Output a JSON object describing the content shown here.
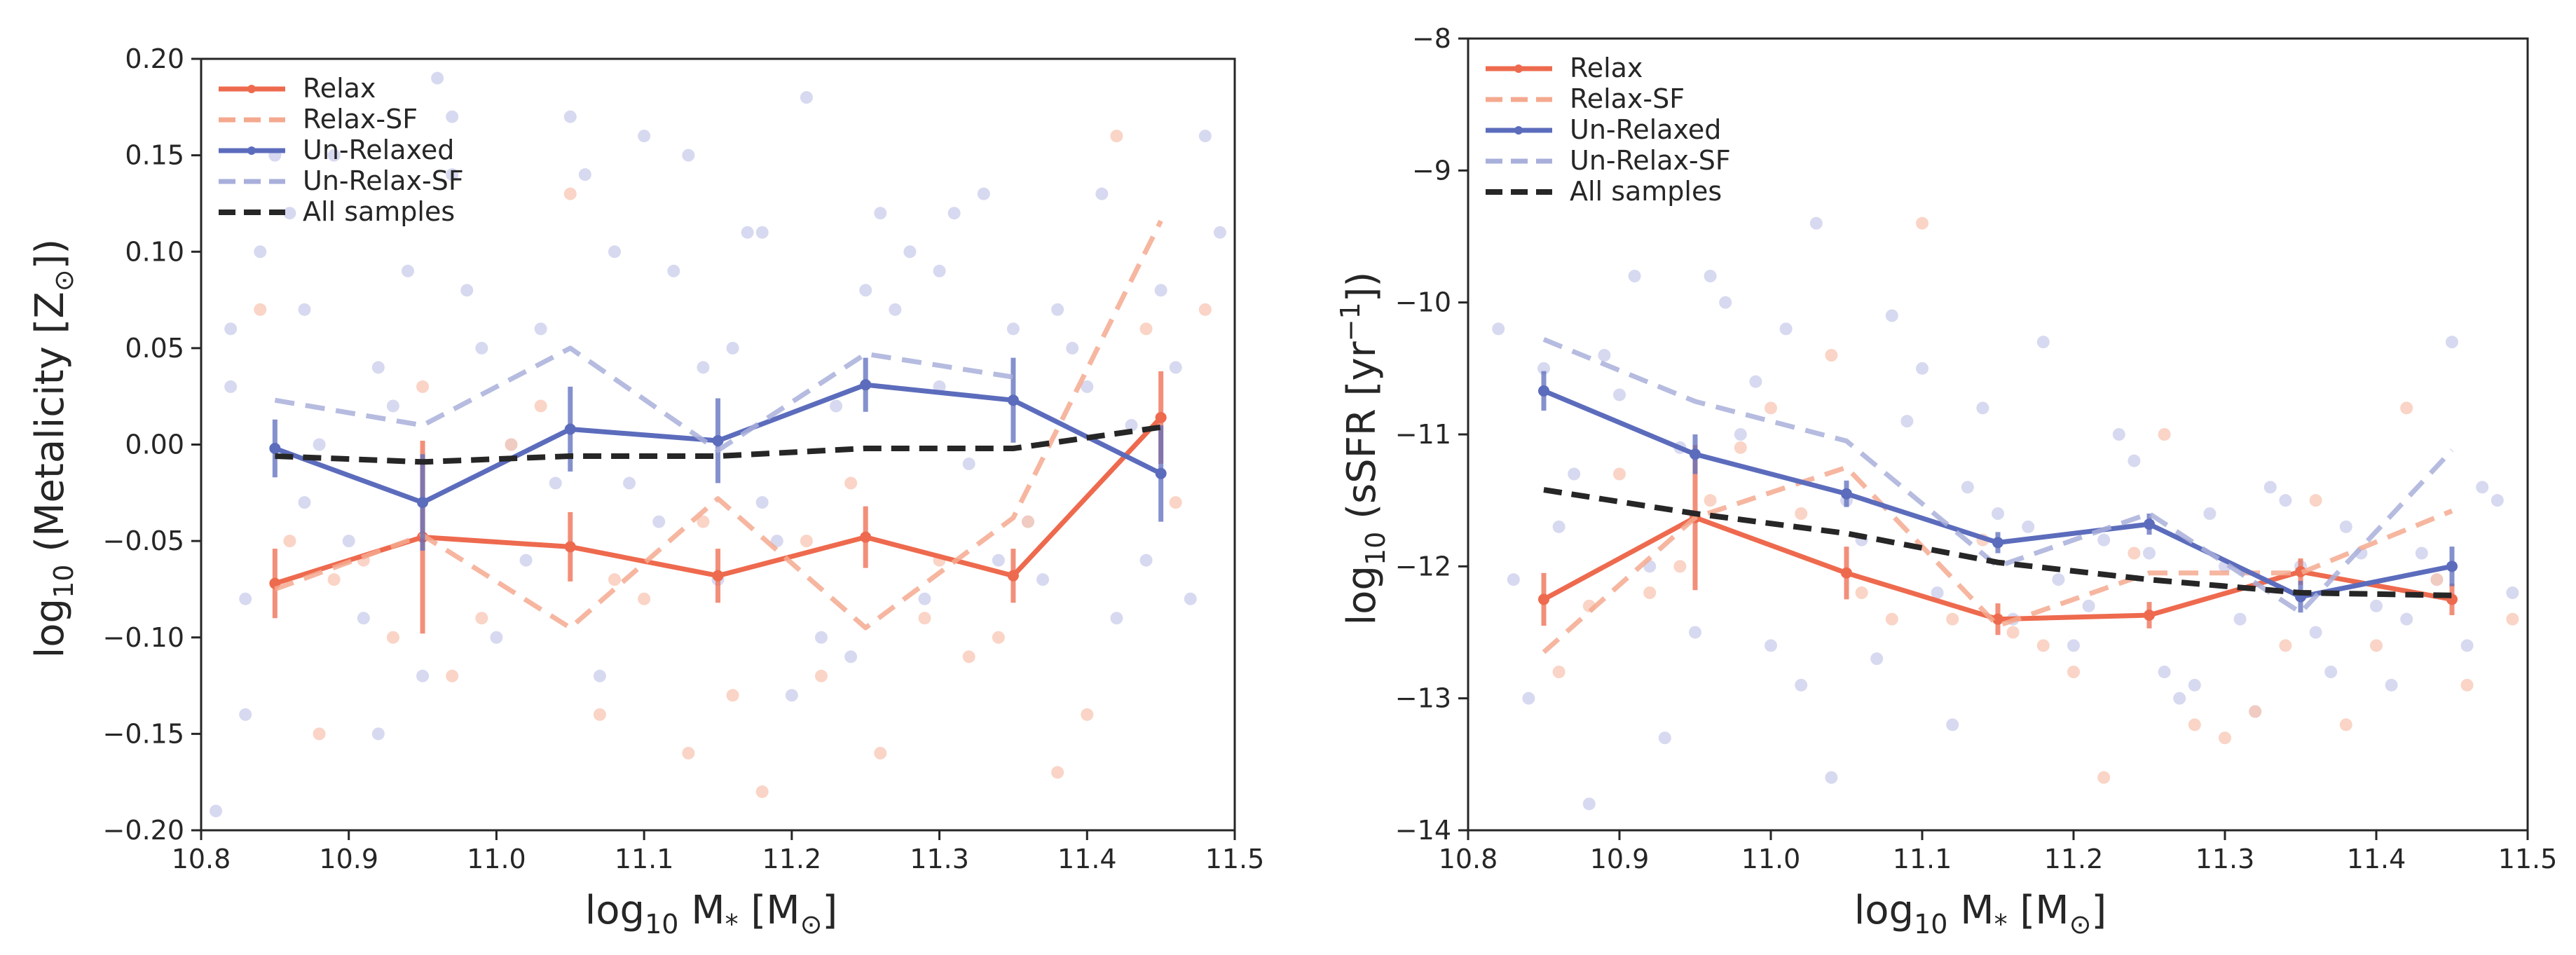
{
  "chart_data": [
    {
      "type": "line",
      "panel": "left",
      "title": "",
      "xlabel": "log10 M* [M⊙]",
      "ylabel": "log10 (Metalicity [Z⊙])",
      "xlim": [
        10.8,
        11.5
      ],
      "ylim": [
        -0.2,
        0.2
      ],
      "xticks": [
        10.8,
        10.9,
        11.0,
        11.1,
        11.2,
        11.3,
        11.4,
        11.5
      ],
      "xtick_labels": [
        "10.8",
        "10.9",
        "11.0",
        "11.1",
        "11.2",
        "11.3",
        "11.4",
        "11.5"
      ],
      "yticks": [
        -0.2,
        -0.15,
        -0.1,
        -0.05,
        0.0,
        0.05,
        0.1,
        0.15,
        0.2
      ],
      "ytick_labels": [
        "−0.20",
        "−0.15",
        "−0.10",
        "−0.05",
        "0.00",
        "0.05",
        "0.10",
        "0.15",
        "0.20"
      ],
      "legend_position": "top-left",
      "series": [
        {
          "name": "Relax",
          "style": "solid-errorbar",
          "color": "#ee6a4e",
          "x": [
            10.85,
            10.95,
            11.05,
            11.15,
            11.25,
            11.35,
            11.45
          ],
          "y": [
            -0.072,
            -0.048,
            -0.053,
            -0.068,
            -0.048,
            -0.068,
            0.014
          ],
          "err": [
            0.018,
            0.05,
            0.018,
            0.014,
            0.016,
            0.014,
            0.024
          ]
        },
        {
          "name": "Relax-SF",
          "style": "dashed",
          "color": "#f4a98f",
          "x": [
            10.85,
            10.95,
            11.05,
            11.15,
            11.25,
            11.35,
            11.45
          ],
          "y": [
            -0.075,
            -0.047,
            -0.095,
            -0.028,
            -0.095,
            -0.038,
            0.116
          ]
        },
        {
          "name": "Un-Relaxed",
          "style": "solid-errorbar",
          "color": "#5c6cbc",
          "x": [
            10.85,
            10.95,
            11.05,
            11.15,
            11.25,
            11.35,
            11.45
          ],
          "y": [
            -0.002,
            -0.03,
            0.008,
            0.002,
            0.031,
            0.023,
            -0.015
          ],
          "err": [
            0.015,
            0.025,
            0.022,
            0.022,
            0.014,
            0.022,
            0.025
          ]
        },
        {
          "name": "Un-Relax-SF",
          "style": "dashed",
          "color": "#a9afdb",
          "x": [
            10.85,
            10.95,
            11.05,
            11.15,
            11.25,
            11.35
          ],
          "y": [
            0.023,
            0.01,
            0.05,
            -0.003,
            0.047,
            0.035
          ]
        },
        {
          "name": "All samples",
          "style": "dashed-bold",
          "color": "#262626",
          "x": [
            10.85,
            10.95,
            11.05,
            11.15,
            11.25,
            11.35,
            11.45
          ],
          "y": [
            -0.006,
            -0.009,
            -0.006,
            -0.006,
            -0.002,
            -0.002,
            0.009
          ]
        }
      ],
      "scatter": [
        {
          "name": "Un-Relaxed points",
          "color": "#c9cceb",
          "x": [
            10.82,
            10.84,
            10.87,
            10.89,
            10.92,
            10.95,
            10.98,
            10.83,
            10.86,
            10.9,
            10.93,
            10.97,
            11.0,
            11.03,
            11.06,
            11.09,
            11.12,
            11.15,
            11.18,
            11.21,
            11.24,
            11.27,
            11.3,
            11.33,
            11.36,
            11.39,
            11.42,
            11.45,
            11.48,
            10.81,
            10.88,
            10.96,
            11.02,
            11.08,
            11.14,
            11.2,
            11.26,
            11.32,
            11.38,
            11.44,
            11.47,
            10.85,
            10.91,
            10.99,
            11.05,
            11.11,
            11.17,
            11.23,
            11.29,
            11.35,
            11.41,
            10.83,
            10.94,
            11.01,
            11.13,
            11.19,
            11.25,
            11.31,
            11.4,
            11.46,
            10.87,
            10.92,
            11.04,
            11.1,
            11.16,
            11.22,
            11.28,
            11.34,
            11.43,
            11.49,
            10.82,
            10.97,
            11.07,
            11.18,
            11.3,
            11.37
          ],
          "y": [
            0.06,
            0.1,
            -0.03,
            0.15,
            0.04,
            -0.12,
            0.08,
            -0.08,
            0.12,
            -0.05,
            0.02,
            0.17,
            -0.1,
            0.06,
            0.14,
            -0.02,
            0.09,
            -0.07,
            0.11,
            0.18,
            -0.11,
            0.07,
            0.03,
            0.13,
            -0.04,
            0.05,
            -0.09,
            0.08,
            0.16,
            -0.19,
            0.0,
            0.19,
            -0.06,
            0.1,
            0.04,
            -0.13,
            0.12,
            -0.01,
            0.07,
            -0.06,
            -0.08,
            0.15,
            -0.09,
            0.05,
            0.17,
            -0.04,
            0.11,
            0.02,
            -0.08,
            0.06,
            0.13,
            -0.14,
            0.09,
            0.0,
            0.15,
            -0.05,
            0.08,
            0.12,
            0.03,
            0.04,
            0.07,
            -0.15,
            -0.02,
            0.16,
            0.05,
            -0.1,
            0.1,
            -0.06,
            0.01,
            0.11,
            0.03,
            0.14,
            -0.12,
            -0.03,
            0.09,
            -0.07
          ]
        },
        {
          "name": "Relax points",
          "color": "#f8c6b3",
          "x": [
            10.84,
            10.88,
            10.91,
            10.95,
            10.99,
            11.03,
            11.07,
            11.1,
            11.14,
            11.18,
            11.22,
            11.26,
            11.3,
            11.34,
            11.38,
            11.42,
            11.46,
            11.48,
            10.86,
            10.93,
            11.01,
            11.08,
            11.16,
            11.24,
            11.32,
            11.4,
            11.44,
            10.89,
            10.97,
            11.05,
            11.13,
            11.21,
            11.29,
            11.36
          ],
          "y": [
            0.07,
            -0.15,
            -0.06,
            0.03,
            -0.09,
            0.02,
            -0.14,
            -0.08,
            -0.04,
            -0.18,
            -0.12,
            -0.16,
            -0.06,
            -0.1,
            -0.17,
            0.16,
            -0.03,
            0.07,
            -0.05,
            -0.1,
            0.0,
            -0.07,
            -0.13,
            -0.02,
            -0.11,
            -0.14,
            0.06,
            -0.07,
            -0.12,
            0.13,
            -0.16,
            -0.05,
            -0.09,
            -0.04
          ]
        }
      ]
    },
    {
      "type": "line",
      "panel": "right",
      "title": "",
      "xlabel": "log10 M* [M⊙]",
      "ylabel": "log10 (sSFR [yr⁻¹])",
      "xlim": [
        10.8,
        11.5
      ],
      "ylim": [
        -14,
        -8
      ],
      "xticks": [
        10.8,
        10.9,
        11.0,
        11.1,
        11.2,
        11.3,
        11.4,
        11.5
      ],
      "xtick_labels": [
        "10.8",
        "10.9",
        "11.0",
        "11.1",
        "11.2",
        "11.3",
        "11.4",
        "11.5"
      ],
      "yticks": [
        -14,
        -13,
        -12,
        -11,
        -10,
        -9,
        -8
      ],
      "ytick_labels": [
        "−14",
        "−13",
        "−12",
        "−11",
        "−10",
        "−9",
        "−8"
      ],
      "legend_position": "top-left",
      "series": [
        {
          "name": "Relax",
          "style": "solid-errorbar",
          "color": "#ee6a4e",
          "x": [
            10.85,
            10.95,
            11.05,
            11.15,
            11.25,
            11.35,
            11.45
          ],
          "y": [
            -12.25,
            -11.63,
            -12.05,
            -12.4,
            -12.37,
            -12.04,
            -12.25
          ],
          "err": [
            0.2,
            0.55,
            0.2,
            0.12,
            0.1,
            0.1,
            0.12
          ]
        },
        {
          "name": "Relax-SF",
          "style": "dashed",
          "color": "#f4a98f",
          "x": [
            10.85,
            10.95,
            11.05,
            11.15,
            11.25,
            11.35,
            11.45
          ],
          "y": [
            -12.65,
            -11.63,
            -11.25,
            -12.45,
            -12.05,
            -12.05,
            -11.58
          ]
        },
        {
          "name": "Un-Relaxed",
          "style": "solid-errorbar",
          "color": "#5c6cbc",
          "x": [
            10.85,
            10.95,
            11.05,
            11.15,
            11.25,
            11.35,
            11.45
          ],
          "y": [
            -10.67,
            -11.15,
            -11.45,
            -11.82,
            -11.68,
            -12.23,
            -12.0
          ],
          "err": [
            0.15,
            0.15,
            0.1,
            0.08,
            0.08,
            0.12,
            0.15
          ]
        },
        {
          "name": "Un-Relax-SF",
          "style": "dashed",
          "color": "#a9afdb",
          "x": [
            10.85,
            10.95,
            11.05,
            11.15,
            11.25,
            11.35,
            11.45
          ],
          "y": [
            -10.28,
            -10.75,
            -11.05,
            -12.0,
            -11.6,
            -12.35,
            -11.12
          ]
        },
        {
          "name": "All samples",
          "style": "dashed-bold",
          "color": "#262626",
          "x": [
            10.85,
            10.95,
            11.05,
            11.15,
            11.25,
            11.35,
            11.45
          ],
          "y": [
            -11.42,
            -11.6,
            -11.75,
            -11.97,
            -12.1,
            -12.2,
            -12.22
          ]
        }
      ],
      "scatter": [
        {
          "name": "Un-Relaxed points",
          "color": "#c9cceb",
          "x": [
            10.82,
            10.85,
            10.88,
            10.91,
            10.94,
            10.97,
            11.0,
            11.03,
            11.06,
            11.09,
            11.12,
            11.15,
            11.18,
            11.21,
            11.24,
            11.27,
            11.3,
            11.33,
            11.36,
            11.39,
            11.42,
            11.45,
            11.48,
            10.83,
            10.87,
            10.9,
            10.93,
            10.96,
            10.99,
            11.02,
            11.05,
            11.08,
            11.11,
            11.14,
            11.17,
            11.2,
            11.23,
            11.26,
            11.29,
            11.32,
            11.35,
            11.38,
            11.41,
            11.44,
            11.47,
            10.84,
            10.89,
            10.92,
            10.98,
            11.04,
            11.1,
            11.16,
            11.22,
            11.28,
            11.34,
            11.4,
            11.46,
            10.86,
            10.95,
            11.01,
            11.07,
            11.13,
            11.19,
            11.25,
            11.31,
            11.37,
            11.43,
            11.49
          ],
          "y": [
            -10.2,
            -10.5,
            -13.8,
            -9.8,
            -11.1,
            -10.0,
            -12.6,
            -9.4,
            -11.8,
            -10.9,
            -13.2,
            -11.6,
            -10.3,
            -12.3,
            -11.2,
            -13.0,
            -12.0,
            -11.4,
            -12.5,
            -11.9,
            -12.4,
            -10.3,
            -11.5,
            -12.1,
            -11.3,
            -10.7,
            -13.3,
            -9.8,
            -10.6,
            -12.9,
            -11.5,
            -10.1,
            -12.2,
            -10.8,
            -11.7,
            -12.6,
            -11.0,
            -12.8,
            -11.6,
            -13.1,
            -12.0,
            -11.7,
            -12.9,
            -12.1,
            -11.4,
            -13.0,
            -10.4,
            -12.0,
            -11.0,
            -13.6,
            -10.5,
            -12.4,
            -11.8,
            -12.9,
            -11.5,
            -12.3,
            -12.6,
            -11.7,
            -12.5,
            -10.2,
            -12.7,
            -11.4,
            -12.1,
            -11.9,
            -12.4,
            -12.8,
            -11.9,
            -12.2
          ]
        },
        {
          "name": "Relax points",
          "color": "#f8c6b3",
          "x": [
            10.86,
            10.9,
            10.94,
            10.98,
            11.02,
            11.06,
            11.1,
            11.14,
            11.18,
            11.22,
            11.26,
            11.3,
            11.34,
            11.38,
            11.42,
            11.46,
            11.49,
            10.88,
            10.96,
            11.04,
            11.12,
            11.2,
            11.28,
            11.36,
            11.44,
            10.92,
            11.0,
            11.08,
            11.16,
            11.24,
            11.32,
            11.4
          ],
          "y": [
            -12.8,
            -11.3,
            -12.0,
            -11.1,
            -11.6,
            -12.2,
            -9.4,
            -11.8,
            -12.6,
            -13.6,
            -11.0,
            -13.3,
            -12.6,
            -13.2,
            -10.8,
            -12.9,
            -12.4,
            -12.3,
            -11.5,
            -10.4,
            -12.4,
            -12.8,
            -13.2,
            -11.5,
            -12.1,
            -12.2,
            -10.8,
            -12.4,
            -12.5,
            -11.9,
            -13.1,
            -12.6
          ]
        }
      ]
    }
  ],
  "legend": [
    "Relax",
    "Relax-SF",
    "Un-Relaxed",
    "Un-Relax-SF",
    "All samples"
  ],
  "axis_texts": {
    "left_ylabel_main": "log",
    "left_ylabel_sub": "10",
    "left_ylabel_rest_a": " (Metalicity [Z",
    "left_ylabel_sun": "⊙",
    "left_ylabel_rest_b": "])",
    "right_ylabel_main": "log",
    "right_ylabel_sub": "10",
    "right_ylabel_rest_a": " (sSFR [yr",
    "right_ylabel_sup": "−1",
    "right_ylabel_rest_b": "])",
    "xlabel_main": "log",
    "xlabel_sub": "10",
    "xlabel_m": " M",
    "xlabel_star": "*",
    "xlabel_bracket_a": " [M",
    "xlabel_sun": "⊙",
    "xlabel_bracket_b": "]"
  }
}
